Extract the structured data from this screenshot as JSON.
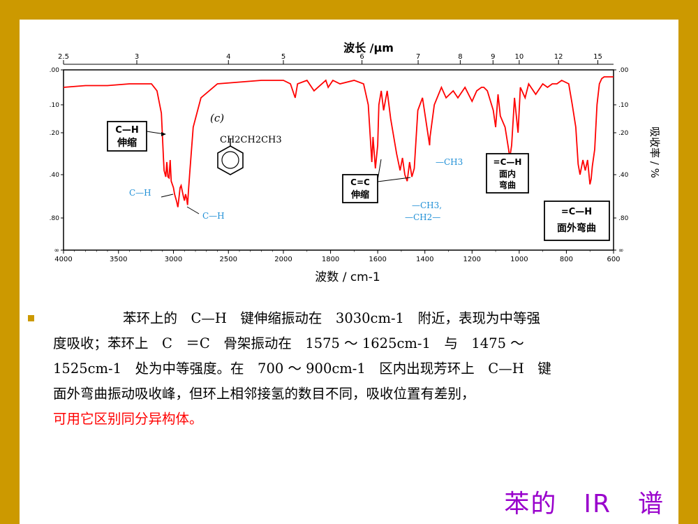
{
  "chart_data": {
    "type": "line",
    "title": "",
    "top_axis_label": "波长 /μm",
    "top_ticks": [
      "2.5",
      "3",
      "4",
      "5",
      "6",
      "7",
      "8",
      "9",
      "10",
      "12",
      "15"
    ],
    "top_ticks_um": [
      2.5,
      3,
      4,
      5,
      6,
      7,
      8,
      9,
      10,
      12,
      15
    ],
    "xlabel": "波数 / cm-1",
    "ylabel_right": "吸收率 / %",
    "xlim": [
      4000,
      600
    ],
    "x_ticks": [
      4000,
      3500,
      3000,
      2500,
      2000,
      1800,
      1600,
      1400,
      1200,
      1000,
      800,
      600
    ],
    "ylim": [
      0,
      1
    ],
    "y_tick_labels_left": [
      ".00",
      ".10",
      ".20",
      ".40",
      ".80",
      "∞"
    ],
    "y_tick_labels_right": [
      ".00",
      ".10",
      ".20",
      ".40",
      ".80",
      "∞"
    ],
    "y_tick_values": [
      0,
      0.1,
      0.2,
      0.4,
      0.8,
      1.0
    ],
    "series": [
      {
        "color": "#ff0000",
        "x": [
          4000,
          3800,
          3600,
          3400,
          3200,
          3150,
          3110,
          3090,
          3085,
          3070,
          3060,
          3050,
          3040,
          3030,
          3020,
          3000,
          2990,
          2970,
          2960,
          2955,
          2940,
          2930,
          2910,
          2900,
          2890,
          2880,
          2872,
          2862,
          2850,
          2820,
          2750,
          2600,
          2400,
          2200,
          2000,
          1970,
          1950,
          1940,
          1900,
          1870,
          1820,
          1810,
          1790,
          1760,
          1700,
          1660,
          1640,
          1625,
          1620,
          1610,
          1600,
          1595,
          1585,
          1575,
          1560,
          1545,
          1520,
          1505,
          1495,
          1485,
          1475,
          1465,
          1455,
          1445,
          1430,
          1410,
          1380,
          1378,
          1360,
          1330,
          1310,
          1280,
          1260,
          1230,
          1200,
          1180,
          1160,
          1150,
          1135,
          1110,
          1100,
          1090,
          1080,
          1060,
          1045,
          1040,
          1032,
          1020,
          1005,
          995,
          975,
          960,
          930,
          900,
          880,
          860,
          840,
          820,
          790,
          775,
          760,
          750,
          742,
          730,
          720,
          710,
          700,
          695,
          690,
          680,
          670,
          660,
          650,
          640,
          620,
          600
        ],
        "y": [
          0.05,
          0.045,
          0.045,
          0.04,
          0.04,
          0.06,
          0.13,
          0.33,
          0.38,
          0.42,
          0.34,
          0.42,
          0.43,
          0.33,
          0.46,
          0.52,
          0.58,
          0.65,
          0.7,
          0.66,
          0.52,
          0.5,
          0.6,
          0.64,
          0.58,
          0.62,
          0.68,
          0.53,
          0.38,
          0.18,
          0.08,
          0.04,
          0.035,
          0.03,
          0.03,
          0.04,
          0.08,
          0.04,
          0.03,
          0.06,
          0.03,
          0.05,
          0.03,
          0.04,
          0.03,
          0.04,
          0.1,
          0.34,
          0.22,
          0.37,
          0.26,
          0.1,
          0.06,
          0.12,
          0.06,
          0.15,
          0.3,
          0.38,
          0.32,
          0.4,
          0.46,
          0.34,
          0.42,
          0.37,
          0.12,
          0.08,
          0.26,
          0.22,
          0.1,
          0.05,
          0.08,
          0.06,
          0.08,
          0.05,
          0.09,
          0.06,
          0.05,
          0.05,
          0.06,
          0.12,
          0.18,
          0.07,
          0.14,
          0.18,
          0.28,
          0.32,
          0.26,
          0.08,
          0.2,
          0.05,
          0.08,
          0.04,
          0.07,
          0.04,
          0.05,
          0.04,
          0.04,
          0.03,
          0.04,
          0.1,
          0.18,
          0.35,
          0.4,
          0.33,
          0.38,
          0.33,
          0.49,
          0.44,
          0.36,
          0.28,
          0.1,
          0.04,
          0.025,
          0.02,
          0.02,
          0.02
        ]
      }
    ],
    "annotations": {
      "panel_label": "(c)",
      "formula": "CH2CH2CH3",
      "box_ch_stretch": [
        "C—H",
        "伸缩"
      ],
      "ch_label_1": "C—H",
      "ch_label_2": "C—H",
      "box_cc_stretch": [
        "C=C",
        "伸缩"
      ],
      "ch3_label": "—CH3",
      "ch3_ch2_line1": "—CH3,",
      "ch3_ch2_line2": "—CH2—",
      "box_inplane": [
        "=C—H",
        "面内",
        "弯曲"
      ],
      "box_outplane": [
        "=C—H",
        "面外弯曲"
      ]
    }
  },
  "paragraph": {
    "line1": "苯环上的　C—H　键伸缩振动在　3030cm-1　附近，表现为中等强",
    "line2": "度吸收；苯环上　C　＝C　骨架振动在　1575 ～ 1625cm-1　与　1475 ～",
    "line3": "1525cm-1　处为中等强度。在　700 ～ 900cm-1　区内出现芳环上　C—H　键",
    "line4": "面外弯曲振动吸收峰，但环上相邻接氢的数目不同，吸收位置有差别，",
    "line5_red": "可用它区别同分异构体。"
  },
  "slide_title": "苯的　IR　谱",
  "colors": {
    "border": "#cc9900",
    "curve": "#ff0000",
    "annotation_blue": "#1f8fd6",
    "title": "#9900cc"
  }
}
